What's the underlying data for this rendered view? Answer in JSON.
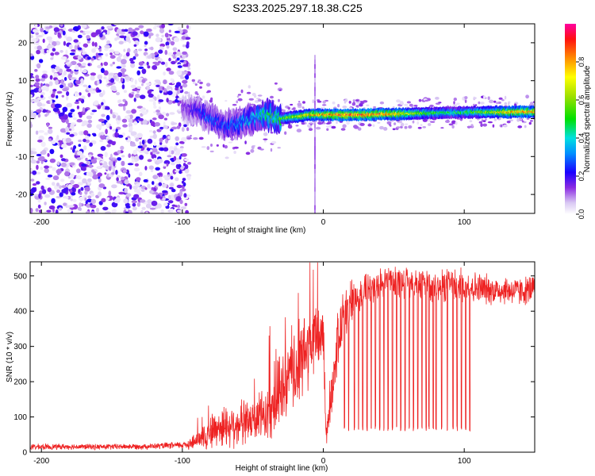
{
  "title": "S233.2025.297.18.38.C25",
  "chart_data": [
    {
      "type": "heatmap",
      "name": "spectrogram",
      "xlabel": "Height of straight line (km)",
      "ylabel": "Frequency (Hz)",
      "xlim": [
        -208,
        150
      ],
      "ylim": [
        -25,
        25
      ],
      "xticks": [
        -200,
        -100,
        0,
        100
      ],
      "xtick_labels": [
        "-200",
        "-100",
        "0",
        "100"
      ],
      "yticks": [
        -20,
        -10,
        0,
        10,
        20
      ],
      "ytick_labels": [
        "-20",
        "-10",
        "0",
        "10",
        "20"
      ],
      "colorbar": {
        "label": "Normalized spectral amplitude",
        "range": [
          0,
          1
        ],
        "ticks": [
          0.0,
          0.2,
          0.4,
          0.6,
          0.8
        ],
        "tick_labels": [
          "0.0",
          "0.2",
          "0.4",
          "0.6",
          "0.8"
        ]
      },
      "regions": [
        {
          "name": "noise",
          "x": [
            -208,
            -95
          ],
          "description": "scattered low-amplitude noise across all frequencies"
        },
        {
          "name": "signal-onset",
          "x": [
            -100,
            -30
          ],
          "freq_center": -2,
          "freq_spread": 6
        },
        {
          "name": "signal-band",
          "x": [
            -30,
            150
          ],
          "freq_center": 1.2,
          "freq_spread": 1.5
        }
      ],
      "ridge_x": [
        -100,
        -90,
        -80,
        -70,
        -60,
        -50,
        -40,
        -30,
        -20,
        -10,
        0,
        10,
        20,
        30,
        40,
        50,
        60,
        70,
        80,
        90,
        100,
        110,
        120,
        130,
        140,
        150
      ],
      "ridge_freq": [
        3,
        2,
        0,
        -2,
        -1,
        0,
        1,
        0,
        0.5,
        1,
        1,
        1,
        1,
        1,
        1.2,
        1.2,
        1.3,
        1.4,
        1.5,
        1.6,
        1.6,
        1.7,
        1.7,
        1.7,
        1.8,
        1.8
      ],
      "ridge_amp": [
        0.15,
        0.25,
        0.3,
        0.3,
        0.35,
        0.4,
        0.5,
        0.55,
        0.7,
        0.8,
        0.85,
        0.9,
        0.95,
        0.95,
        0.9,
        0.85,
        0.7,
        0.6,
        0.55,
        0.5,
        0.55,
        0.6,
        0.7,
        0.8,
        0.85,
        0.85
      ]
    },
    {
      "type": "line",
      "name": "snr",
      "xlabel": "Height of straight line (km)",
      "ylabel": "SNR (10 * v/v)",
      "xlim": [
        -208,
        150
      ],
      "ylim": [
        0,
        540
      ],
      "xticks": [
        -200,
        -100,
        0,
        100
      ],
      "xtick_labels": [
        "-200",
        "-100",
        "0",
        "100"
      ],
      "yticks": [
        0,
        100,
        200,
        300,
        400,
        500
      ],
      "ytick_labels": [
        "0",
        "100",
        "200",
        "300",
        "400",
        "500"
      ],
      "color": "#ee2222",
      "x": [
        -208,
        -200,
        -180,
        -160,
        -140,
        -120,
        -100,
        -90,
        -80,
        -70,
        -60,
        -50,
        -40,
        -30,
        -20,
        -10,
        -5,
        0,
        2,
        5,
        10,
        15,
        20,
        30,
        40,
        50,
        60,
        70,
        80,
        90,
        100,
        110,
        120,
        130,
        140,
        150
      ],
      "mean": [
        15,
        15,
        16,
        15,
        16,
        17,
        20,
        30,
        60,
        75,
        80,
        85,
        110,
        170,
        230,
        300,
        320,
        340,
        40,
        150,
        300,
        400,
        430,
        460,
        480,
        485,
        480,
        475,
        470,
        475,
        470,
        465,
        460,
        460,
        455,
        465
      ],
      "amplitude": [
        8,
        8,
        8,
        8,
        8,
        8,
        10,
        25,
        50,
        60,
        60,
        60,
        80,
        100,
        110,
        120,
        110,
        80,
        30,
        80,
        80,
        70,
        60,
        50,
        45,
        45,
        45,
        45,
        45,
        45,
        45,
        45,
        40,
        40,
        40,
        40
      ],
      "dips_x": [
        15,
        18,
        22,
        25,
        28,
        31,
        34,
        37,
        40,
        43,
        46,
        49,
        52,
        55,
        58,
        61,
        64,
        67,
        70,
        73,
        75,
        78,
        80,
        84,
        88,
        92,
        95,
        98,
        101,
        104
      ],
      "dip_value": 60
    }
  ]
}
